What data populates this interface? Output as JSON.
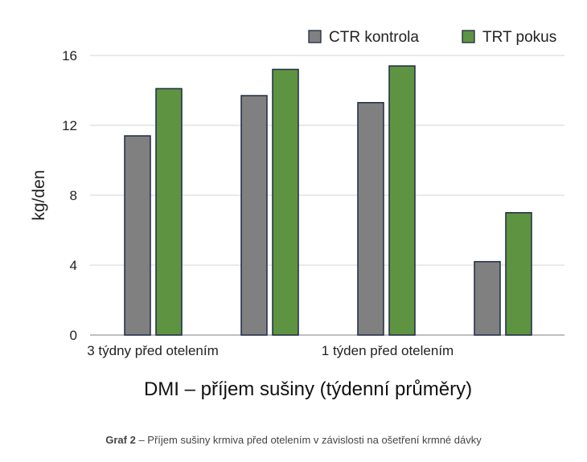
{
  "chart_data": {
    "type": "bar",
    "title": "",
    "xlabel": "DMI – příjem sušiny (týdenní průměry)",
    "ylabel": "kg/den",
    "ylim": [
      0,
      16
    ],
    "yticks": [
      0,
      4,
      8,
      12,
      16
    ],
    "category_labels": [
      "3 týdny před otelením",
      "",
      "1 týden před otelením",
      ""
    ],
    "series": [
      {
        "name": "CTR kontrola",
        "color": "#808080",
        "values": [
          11.4,
          13.7,
          13.3,
          4.2
        ]
      },
      {
        "name": "TRT pokus",
        "color": "#5e9441",
        "values": [
          14.1,
          15.2,
          15.4,
          7.0
        ]
      }
    ],
    "legend": "top-right",
    "grid": true,
    "bar_stroke": "#1f2a44"
  },
  "caption": {
    "number": "Graf 2",
    "text": " – Příjem sušiny krmiva před otelením v závislosti na ošetření krmné dávky"
  }
}
